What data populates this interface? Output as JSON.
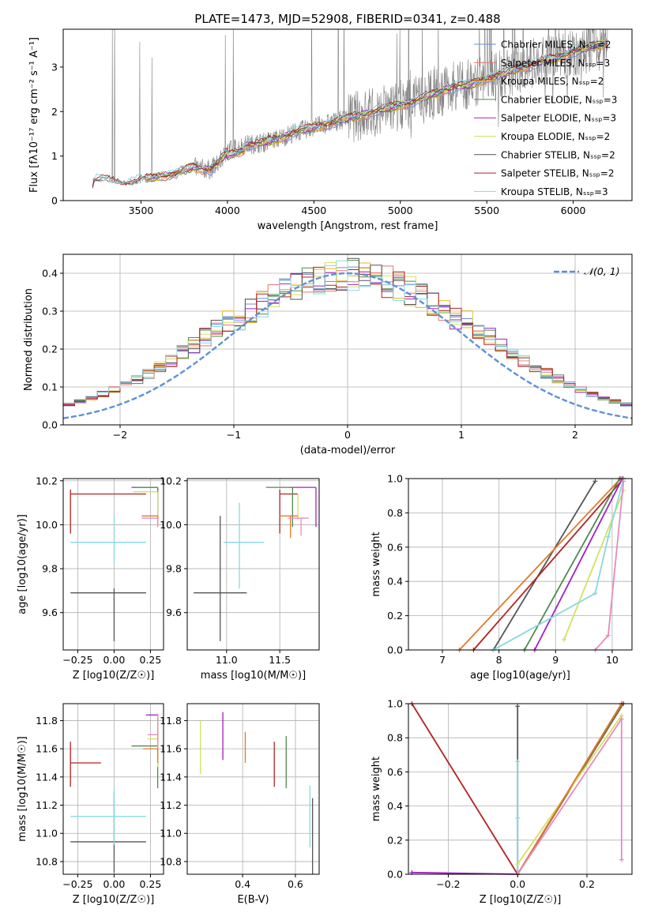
{
  "title": "PLATE=1473, MJD=52908, FIBERID=0341, z=0.488",
  "colors": {
    "chabrier_miles": "#6b8fd6",
    "salpeter_miles": "#e57373",
    "kroupa_miles": "#e8b520",
    "chabrier_elodie": "#4e8a4e",
    "salpeter_elodie": "#a020c0",
    "kroupa_elodie": "#d4e060",
    "chabrier_stelib": "#555555",
    "salpeter_stelib": "#b22222",
    "kroupa_stelib": "#88d8e0",
    "orange": "#e07a2a",
    "pink": "#e68ac0",
    "normal_curve": "#6090d8",
    "data_spectrum": "#808080"
  },
  "chart_data": [
    {
      "id": "spectrum",
      "type": "line",
      "title": "PLATE=1473, MJD=52908, FIBERID=0341, z=0.488",
      "xlabel": "wavelength [Angstrom, rest frame]",
      "ylabel": "Flux [fλ10⁻¹⁷ erg cm⁻² s⁻¹ A⁻¹]",
      "xlim": [
        3050,
        6340
      ],
      "ylim": [
        0,
        3.85
      ],
      "xticks": [
        "3500",
        "4000",
        "4500",
        "5000",
        "5500",
        "6000"
      ],
      "yticks": [
        "0",
        "1",
        "2",
        "3"
      ],
      "legend": "top-right",
      "legend_entries": [
        "Chabrier MILES, N_SSP=2",
        "Salpeter MILES, N_SSP=3",
        "Kroupa MILES, N_SSP=2",
        "Chabrier ELODIE, N_SSP=3",
        "Salpeter ELODIE, N_SSP=3",
        "Kroupa ELODIE, N_SSP=2",
        "Chabrier STELIB, N_SSP=2",
        "Salpeter STELIB, N_SSP=2",
        "Kroupa STELIB, N_SSP=3"
      ],
      "model_continuum": {
        "x": [
          3200,
          3230,
          3300,
          3400,
          3500,
          3600,
          3700,
          3800,
          3900,
          3950,
          4000,
          4100,
          4200,
          4300,
          4400,
          4500,
          4600,
          4700,
          4800,
          4900,
          5000,
          5100,
          5200,
          5300,
          5400,
          5500,
          5600,
          5700,
          5800,
          5900,
          6000,
          6100,
          6200
        ],
        "y": [
          0.05,
          0.45,
          0.45,
          0.38,
          0.45,
          0.55,
          0.6,
          0.75,
          0.7,
          0.85,
          1.1,
          1.25,
          1.3,
          1.4,
          1.55,
          1.65,
          1.75,
          1.85,
          1.95,
          2.05,
          2.15,
          2.25,
          2.4,
          2.55,
          2.6,
          2.75,
          2.85,
          3.0,
          3.1,
          3.2,
          3.35,
          3.45,
          3.55
        ]
      }
    },
    {
      "id": "residuals",
      "type": "line",
      "xlabel": "(data-model)/error",
      "ylabel": "Normed distribution",
      "xlim": [
        -2.5,
        2.5
      ],
      "ylim": [
        0,
        0.45
      ],
      "xticks": [
        "−2",
        "−1",
        "0",
        "1",
        "2"
      ],
      "yticks": [
        "0.0",
        "0.1",
        "0.2",
        "0.3",
        "0.4"
      ],
      "grid": true,
      "legend": "top-right",
      "legend_entries": [
        "𝒩(0, 1)"
      ]
    },
    {
      "id": "age_vs_Z",
      "type": "scatter",
      "xlabel": "Z [log10(Z/Z☉)]",
      "ylabel": "age  [log10(age/yr)]",
      "xlim": [
        -0.35,
        0.34
      ],
      "ylim": [
        9.43,
        10.21
      ],
      "xticks": [
        "−0.25",
        "0.00",
        "0.25"
      ],
      "yticks": [
        "9.6",
        "9.8",
        "10.0",
        "10.2"
      ],
      "grid": true,
      "points": [
        {
          "series": "chabrier_stelib",
          "x": 0.0,
          "y": 9.69,
          "xerr": [
            0.3,
            0.22
          ],
          "yerr": [
            0.22,
            0.02
          ]
        },
        {
          "series": "kroupa_stelib",
          "x": 0.0,
          "y": 9.92,
          "xerr": [
            0.3,
            0.22
          ],
          "yerr": [
            0.1,
            0.12
          ]
        },
        {
          "series": "salpeter_stelib",
          "x": -0.3,
          "y": 10.14,
          "xerr": [
            0.0,
            0.52
          ],
          "yerr": [
            0.18,
            0.02
          ]
        },
        {
          "series": "salpeter_elodie",
          "x": 0.3,
          "y": 10.17,
          "xerr": [
            0.18,
            0.0
          ],
          "yerr": [
            0.16,
            0.0
          ]
        },
        {
          "series": "chabrier_elodie",
          "x": 0.3,
          "y": 10.17,
          "xerr": [
            0.15,
            0.0
          ],
          "yerr": [
            0.16,
            0.0
          ]
        },
        {
          "series": "kroupa_elodie",
          "x": 0.3,
          "y": 10.15,
          "xerr": [
            0.17,
            0.0
          ],
          "yerr": [
            0.14,
            0.0
          ]
        },
        {
          "series": "orange",
          "x": 0.3,
          "y": 10.04,
          "xerr": [
            0.11,
            0.0
          ],
          "yerr": [
            0.05,
            0.0
          ]
        },
        {
          "series": "pink",
          "x": 0.3,
          "y": 10.03,
          "xerr": [
            0.11,
            0.0
          ],
          "yerr": [
            0.04,
            0.0
          ]
        }
      ]
    },
    {
      "id": "age_vs_mass",
      "type": "scatter",
      "xlabel": "mass [log10(M/M☉)]",
      "xlim": [
        10.63,
        11.87
      ],
      "ylim": [
        9.43,
        10.21
      ],
      "xticks": [
        "11.0",
        "11.5"
      ],
      "yticks": [
        "9.6",
        "9.8",
        "10.0",
        "10.2"
      ],
      "grid": true,
      "points": [
        {
          "series": "chabrier_stelib",
          "x": 10.94,
          "y": 9.69,
          "xerr": [
            0.25,
            0.25
          ],
          "yerr": [
            0.22,
            0.35
          ]
        },
        {
          "series": "kroupa_stelib",
          "x": 11.12,
          "y": 9.92,
          "xerr": [
            0.15,
            0.23
          ],
          "yerr": [
            0.21,
            0.18
          ]
        },
        {
          "series": "salpeter_stelib",
          "x": 11.5,
          "y": 10.14,
          "xerr": [
            0.0,
            0.17
          ],
          "yerr": [
            0.18,
            0.02
          ]
        },
        {
          "series": "salpeter_elodie",
          "x": 11.84,
          "y": 10.17,
          "xerr": [
            0.25,
            0.0
          ],
          "yerr": [
            0.18,
            0.0
          ]
        },
        {
          "series": "chabrier_elodie",
          "x": 11.62,
          "y": 10.17,
          "xerr": [
            0.25,
            0.0
          ],
          "yerr": [
            0.18,
            0.0
          ]
        },
        {
          "series": "kroupa_elodie",
          "x": 11.67,
          "y": 10.14,
          "xerr": [
            0.0,
            0.0
          ],
          "yerr": [
            0.12,
            0.0
          ]
        },
        {
          "series": "orange",
          "x": 11.6,
          "y": 10.04,
          "xerr": [
            0.1,
            0.07
          ],
          "yerr": [
            0.1,
            0.0
          ]
        },
        {
          "series": "pink",
          "x": 11.7,
          "y": 10.03,
          "xerr": [
            0.12,
            0.07
          ],
          "yerr": [
            0.08,
            0.0
          ]
        }
      ]
    },
    {
      "id": "mass_weight_vs_age",
      "type": "line",
      "xlabel": "age  [log10(age/yr)]",
      "ylabel": "mass weight",
      "xlim": [
        6.4,
        10.35
      ],
      "ylim": [
        0,
        1
      ],
      "xticks": [
        "7",
        "8",
        "9",
        "10"
      ],
      "yticks": [
        "0.0",
        "0.2",
        "0.4",
        "0.6",
        "0.8",
        "1.0"
      ],
      "grid": true,
      "series": [
        {
          "key": "chabrier_stelib",
          "x": [
            7.9,
            9.7
          ],
          "y": [
            0.0,
            0.985
          ]
        },
        {
          "key": "orange",
          "x": [
            7.3,
            10.15
          ],
          "y": [
            0.0,
            1.0
          ]
        },
        {
          "key": "salpeter_stelib",
          "x": [
            7.55,
            10.2
          ],
          "y": [
            0.0,
            1.0
          ]
        },
        {
          "key": "chabrier_elodie",
          "x": [
            8.45,
            10.13
          ],
          "y": [
            0.0,
            1.0
          ]
        },
        {
          "key": "salpeter_elodie",
          "x": [
            8.63,
            10.18
          ],
          "y": [
            0.0,
            1.0
          ]
        },
        {
          "key": "kroupa_elodie",
          "x": [
            9.15,
            10.2
          ],
          "y": [
            0.06,
            0.93
          ]
        },
        {
          "key": "kroupa_stelib",
          "x": [
            7.9,
            9.7,
            9.93,
            10.2
          ],
          "y": [
            0.0,
            0.33,
            0.66,
            1.0
          ]
        },
        {
          "key": "pink",
          "x": [
            9.7,
            9.93,
            10.2
          ],
          "y": [
            0.0,
            0.085,
            0.985
          ]
        }
      ]
    },
    {
      "id": "mass_vs_Z",
      "type": "scatter",
      "xlabel": "Z [log10(Z/Z☉)]",
      "ylabel": "mass [log10(M/M☉)]",
      "xlim": [
        -0.35,
        0.34
      ],
      "ylim": [
        10.71,
        11.92
      ],
      "xticks": [
        "−0.25",
        "0.00",
        "0.25"
      ],
      "yticks": [
        "10.8",
        "11.0",
        "11.2",
        "11.4",
        "11.6",
        "11.8"
      ],
      "grid": true,
      "points": [
        {
          "series": "chabrier_stelib",
          "x": 0.0,
          "y": 10.94,
          "xerr": [
            0.3,
            0.22
          ],
          "yerr": [
            0.22,
            0.35
          ]
        },
        {
          "series": "kroupa_stelib",
          "x": 0.0,
          "y": 11.12,
          "xerr": [
            0.3,
            0.22
          ],
          "yerr": [
            0.2,
            0.2
          ]
        },
        {
          "series": "salpeter_stelib",
          "x": -0.3,
          "y": 11.5,
          "xerr": [
            0.0,
            0.21
          ],
          "yerr": [
            0.17,
            0.15
          ]
        },
        {
          "series": "salpeter_elodie",
          "x": 0.3,
          "y": 11.84,
          "xerr": [
            0.08,
            0.0
          ],
          "yerr": [
            0.0,
            0.0
          ]
        },
        {
          "series": "chabrier_elodie",
          "x": 0.3,
          "y": 11.62,
          "xerr": [
            0.18,
            0.0
          ],
          "yerr": [
            0.3,
            0.22
          ]
        },
        {
          "series": "kroupa_elodie",
          "x": 0.3,
          "y": 11.67,
          "xerr": [
            0.07,
            0.0
          ],
          "yerr": [
            0.2,
            0.1
          ]
        },
        {
          "series": "orange",
          "x": 0.3,
          "y": 11.6,
          "xerr": [
            0.1,
            0.0
          ],
          "yerr": [
            0.1,
            0.15
          ]
        },
        {
          "series": "pink",
          "x": 0.3,
          "y": 11.7,
          "xerr": [
            0.07,
            0.0
          ],
          "yerr": [
            0.1,
            0.15
          ]
        }
      ]
    },
    {
      "id": "mass_vs_ebv",
      "type": "scatter",
      "xlabel": "E(B-V)",
      "xlim": [
        0.19,
        0.69
      ],
      "ylim": [
        10.71,
        11.92
      ],
      "xticks": [
        "0.4",
        "0.6"
      ],
      "yticks": [
        "10.8",
        "11.0",
        "11.2",
        "11.4",
        "11.6",
        "11.8"
      ],
      "grid": true,
      "points": [
        {
          "series": "kroupa_elodie",
          "x": 0.24,
          "y": 11.6,
          "xerr": [
            0,
            0
          ],
          "yerr": [
            0.18,
            0.2
          ]
        },
        {
          "series": "salpeter_elodie",
          "x": 0.325,
          "y": 11.68,
          "xerr": [
            0,
            0
          ],
          "yerr": [
            0.16,
            0.18
          ]
        },
        {
          "series": "orange",
          "x": 0.41,
          "y": 11.6,
          "xerr": [
            0,
            0
          ],
          "yerr": [
            0.1,
            0.12
          ]
        },
        {
          "series": "salpeter_stelib",
          "x": 0.52,
          "y": 11.5,
          "xerr": [
            0,
            0
          ],
          "yerr": [
            0.17,
            0.15
          ]
        },
        {
          "series": "chabrier_elodie",
          "x": 0.565,
          "y": 11.52,
          "xerr": [
            0,
            0
          ],
          "yerr": [
            0.2,
            0.17
          ]
        },
        {
          "series": "kroupa_stelib",
          "x": 0.655,
          "y": 11.12,
          "xerr": [
            0,
            0
          ],
          "yerr": [
            0.22,
            0.22
          ]
        },
        {
          "series": "chabrier_stelib",
          "x": 0.665,
          "y": 10.94,
          "xerr": [
            0,
            0
          ],
          "yerr": [
            0.23,
            0.31
          ]
        }
      ]
    },
    {
      "id": "mass_weight_vs_Z",
      "type": "line",
      "xlabel": "Z [log10(Z/Z☉)]",
      "ylabel": "mass weight",
      "xlim": [
        -0.315,
        0.33
      ],
      "ylim": [
        0,
        1
      ],
      "xticks": [
        "−0.2",
        "0.0",
        "0.2"
      ],
      "yticks": [
        "0.0",
        "0.2",
        "0.4",
        "0.6",
        "0.8",
        "1.0"
      ],
      "grid": true,
      "series": [
        {
          "key": "salpeter_stelib",
          "x": [
            -0.305,
            0.0,
            0.305
          ],
          "y": [
            1.0,
            0.0,
            1.0
          ]
        },
        {
          "key": "chabrier_stelib",
          "x": [
            0.0,
            0.0
          ],
          "y": [
            0.0,
            0.985
          ]
        },
        {
          "key": "kroupa_stelib",
          "x": [
            0.0,
            0.0,
            0.0
          ],
          "y": [
            0.0,
            0.33,
            0.66
          ]
        },
        {
          "key": "salpeter_elodie",
          "x": [
            -0.305,
            0.0,
            0.3
          ],
          "y": [
            0.01,
            0.0,
            1.0
          ]
        },
        {
          "key": "chabrier_elodie",
          "x": [
            0.0,
            0.3
          ],
          "y": [
            0.0,
            0.99
          ]
        },
        {
          "key": "kroupa_elodie",
          "x": [
            0.0,
            0.3
          ],
          "y": [
            0.06,
            0.93
          ]
        },
        {
          "key": "orange",
          "x": [
            0.0,
            0.3
          ],
          "y": [
            0.0,
            1.0
          ]
        },
        {
          "key": "pink",
          "x": [
            0.0,
            0.3,
            0.3
          ],
          "y": [
            0.0,
            0.91,
            0.085
          ]
        }
      ]
    }
  ]
}
